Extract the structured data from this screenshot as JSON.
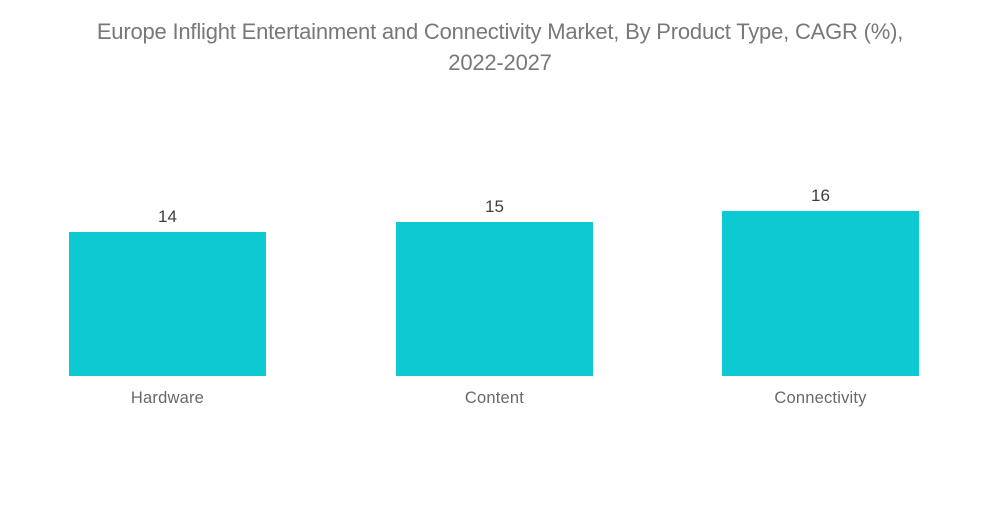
{
  "title_line1": "Europe Inflight Entertainment and Connectivity Market, By Product Type, CAGR (%),",
  "title_line2": "2022-2027",
  "chart_data": {
    "type": "bar",
    "title": "Europe Inflight Entertainment and Connectivity Market, By Product Type, CAGR (%), 2022-2027",
    "categories": [
      "Hardware",
      "Content",
      "Connectivity"
    ],
    "values": [
      14,
      15,
      16
    ],
    "series": [
      {
        "name": "CAGR (%) 2022-2027",
        "values": [
          14,
          15,
          16
        ]
      }
    ],
    "xlabel": "",
    "ylabel": "CAGR (%)",
    "ylim": [
      0,
      16
    ],
    "grid": false,
    "legend": false,
    "axes_visible": false,
    "data_labels": [
      "14",
      "15",
      "16"
    ],
    "bar_color": "#0cc9d2",
    "title_color": "#77787a",
    "value_label_color": "#3d3f41",
    "category_label_color": "#67686a",
    "background_color": "#ffffff"
  }
}
